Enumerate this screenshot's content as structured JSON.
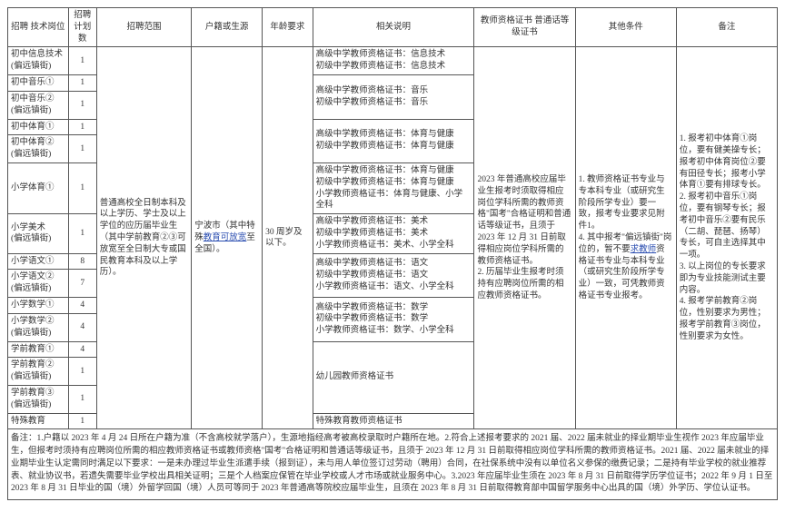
{
  "headers": {
    "pos": "招聘\n技术岗位",
    "cnt": "招聘\n计划数",
    "range": "招聘范围",
    "huji": "户籍或生源",
    "age": "年龄要求",
    "desc": "相关说明",
    "cert": "教师资格证书\n普通话等级证书",
    "other": "其他条件",
    "note": "备注"
  },
  "rows": [
    {
      "pos": "初中信息技术\n(偏远镇街)",
      "cnt": "1",
      "desc": "高级中学教师资格证书：信息技术\n初级中学教师资格证书：信息技术"
    },
    {
      "pos": "初中音乐①",
      "cnt": "1",
      "desc": "高级中学教师资格证书：音乐\n初级中学教师资格证书：音乐"
    },
    {
      "pos": "初中音乐②\n(偏远镇街)",
      "cnt": "1",
      "desc": ""
    },
    {
      "pos": "初中体育①",
      "cnt": "1",
      "desc": "高级中学教师资格证书：体育与健康\n初级中学教师资格证书：体育与健康"
    },
    {
      "pos": "初中体育②\n(偏远镇街)",
      "cnt": "1",
      "desc": ""
    },
    {
      "pos": "小学体育①",
      "cnt": "1",
      "desc": "高级中学教师资格证书：体育与健康\n初级中学教师资格证书：体育与健康\n小学教师资格证书：体育与健康、小学全科"
    },
    {
      "pos": "小学美术\n(偏远镇街)",
      "cnt": "1",
      "desc": "高级中学教师资格证书：美术\n初级中学教师资格证书：美术\n小学教师资格证书：美术、小学全科"
    },
    {
      "pos": "小学语文①",
      "cnt": "8",
      "desc": "高级中学教师资格证书：语文\n初级中学教师资格证书：语文\n小学教师资格证书：语文、小学全科"
    },
    {
      "pos": "小学语文②\n(偏远镇街)",
      "cnt": "7",
      "desc": ""
    },
    {
      "pos": "小学数学①",
      "cnt": "4",
      "desc": "高级中学教师资格证书：数学\n初级中学教师资格证书：数学\n小学教师资格证书：数学、小学全科"
    },
    {
      "pos": "小学数学②\n(偏远镇街)",
      "cnt": "4",
      "desc": ""
    },
    {
      "pos": "学前教育①",
      "cnt": "4",
      "desc": "幼儿园教师资格证书"
    },
    {
      "pos": "学前教育②\n(偏远镇街)",
      "cnt": "1",
      "desc": ""
    },
    {
      "pos": "学前教育③\n(偏远镇街)",
      "cnt": "1",
      "desc": ""
    },
    {
      "pos": "特殊教育",
      "cnt": "1",
      "desc": "特殊教育教师资格证书"
    }
  ],
  "range_text": "普通高校全日制本科及以上学历、学士及以上学位的应历届毕业生（其中学前教育②③可放宽至全日制大专或国民教育本科及以上学历）。",
  "huji_text1": "宁波市（其中特殊",
  "huji_link": "教育可放宽",
  "huji_text2": "至全国）。",
  "age_text": "30 周岁及以下。",
  "cert_text": "2023 年普通高校应届毕业生报考时须取得相应岗位学科所需的教师资格\"国考\"合格证明和普通话等级证书，且须于2023 年 12 月 31 日前取得相应岗位学科所需的教师资格证书。\n2. 历届毕业生报考时须持有应聘岗位所需的相应教师资格证书。",
  "other_text1": "1. 教师资格证书专业与专本科专业（或研究生阶段所学专业）要一致，报考专业要求见附件1。",
  "other_text2": "4. 其中报考\"偏远镇街\"岗位的，暂不要",
  "other_link": "求教师",
  "other_text3": "资格证书专业与本科专业（或研究生阶段所学专业）一致，可凭教师资格证书专业报考。",
  "note_text": "1. 报考初中体育①岗位，要有健美操专长；报考初中体育岗位②要有田径专长；报考小学体育①要有排球专长。\n2. 报考初中音乐①岗位，要有钢琴专长；报考初中音乐②要有民乐（二胡、琵琶、扬琴）专长，可自主选择其中一项。\n3. 以上岗位的专长要求即为专业技能测试主要内容。\n4. 报考学前教育②岗位，性别要求为男性；报考学前教育③岗位，性别要求为女性。",
  "footnote": "备注：1.户籍以 2023 年 4 月 24 日所在户籍为准（不含高校就学落户），生源地指经高考被高校录取时户籍所在地。2.符合上述报考要求的 2021 届、2022 届未就业的择业期毕业生视作 2023 年应届毕业生，但报考时须持有应聘岗位所需的相应教师资格证书或教师资格\"国考\"合格证明和普通话等级证书，且须于 2023 年 12 月 31 日前取得相应岗位学科所需的教师资格证书。2021 届、2022 届未就业的择业期毕业生认定需同时满足以下要求：一是未办理过毕业生派遣手续（报到证），未与用人单位签订过劳动（聘用）合同，在社保系统中没有以单位名义参保的缴费记录；二是持有毕业学校的就业推荐表、就业协议书，若遗失需要毕业学校出具相关证明；三是个人档案应保管在毕业学校或人才市场或就业服务中心。3.2023 年应届毕业生须在 2023 年 8 月 31 日前取得学历学位证书；2022 年 9 月 1 日至 2023 年 8 月 31 日毕业的国（境）外留学回国（境）人员可等同于 2023 年普通高等院校应届毕业生，且须在 2023 年 8 月 31 日前取得教育部中国留学服务中心出具的国（境）外学历、学位认证书。"
}
